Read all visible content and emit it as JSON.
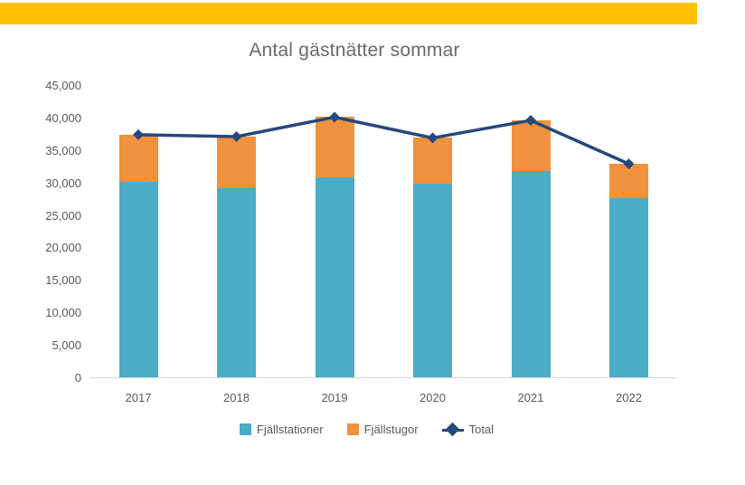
{
  "banner": {
    "color": "#FFC000"
  },
  "text_colors": {
    "title": "#6A6A6A",
    "axis": "#595959",
    "legend": "#595959",
    "axis_line": "#D9D9D9"
  },
  "chart_data": {
    "type": "bar",
    "subtype": "stacked-bars-with-line-overlay",
    "title": "Antal gästnätter sommar",
    "categories": [
      "2017",
      "2018",
      "2019",
      "2020",
      "2021",
      "2022"
    ],
    "series": [
      {
        "name": "Fjällstationer",
        "type": "bar",
        "color": "#4AACC5",
        "values": [
          30200,
          29300,
          30900,
          30000,
          31900,
          27700
        ]
      },
      {
        "name": "Fjällstugor",
        "type": "bar",
        "color": "#F0913D",
        "values": [
          7300,
          7900,
          9300,
          7000,
          7800,
          5300
        ]
      },
      {
        "name": "Total",
        "type": "line",
        "color": "#26487C",
        "marker": "diamond",
        "values": [
          37500,
          37200,
          40200,
          37000,
          39700,
          33000
        ]
      }
    ],
    "xlabel": "",
    "ylabel": "",
    "ylim": [
      0,
      45000
    ],
    "yticks": [
      0,
      5000,
      10000,
      15000,
      20000,
      25000,
      30000,
      35000,
      40000,
      45000
    ],
    "ytick_labels": [
      "0",
      "5,000",
      "10,000",
      "15,000",
      "20,000",
      "25,000",
      "30,000",
      "35,000",
      "40,000",
      "45,000"
    ],
    "grid": false,
    "legend_position": "bottom"
  }
}
